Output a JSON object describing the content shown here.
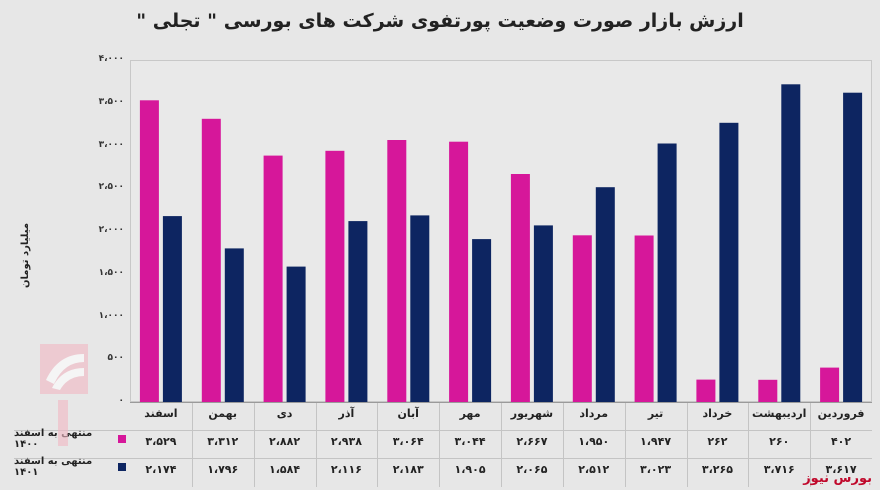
{
  "chart_data": {
    "type": "bar",
    "title": "ارزش بازار صورت وضعیت پورتفوی شرکت های بورسی \" تجلی \"",
    "ylabel": "میلیارد تومان",
    "ylim": [
      0,
      4000
    ],
    "yticks": [
      "۰",
      "۵۰۰",
      "۱،۰۰۰",
      "۱،۵۰۰",
      "۲،۰۰۰",
      "۲،۵۰۰",
      "۳،۰۰۰",
      "۳،۵۰۰",
      "۴،۰۰۰"
    ],
    "ytick_values": [
      0,
      500,
      1000,
      1500,
      2000,
      2500,
      3000,
      3500,
      4000
    ],
    "categories": [
      "فروردین",
      "اردیبهشت",
      "خرداد",
      "تیر",
      "مرداد",
      "شهریور",
      "مهر",
      "آبان",
      "آذر",
      "دی",
      "بهمن",
      "اسفند"
    ],
    "series": [
      {
        "name": "منتهی به اسفند ۱۴۰۰",
        "color": "#d6179a",
        "values": [
          402,
          260,
          262,
          1947,
          1950,
          2667,
          3044,
          3064,
          2938,
          2882,
          3312,
          3529
        ],
        "labels": [
          "۴۰۲",
          "۲۶۰",
          "۲۶۲",
          "۱،۹۴۷",
          "۱،۹۵۰",
          "۲،۶۶۷",
          "۳،۰۴۴",
          "۳،۰۶۴",
          "۲،۹۳۸",
          "۲،۸۸۲",
          "۳،۳۱۲",
          "۳،۵۲۹"
        ]
      },
      {
        "name": "منتهی به اسفند ۱۴۰۱",
        "color": "#0d2561",
        "values": [
          3617,
          3716,
          3265,
          3023,
          2512,
          2065,
          1905,
          2183,
          2116,
          1584,
          1796,
          2174
        ],
        "labels": [
          "۳،۶۱۷",
          "۳،۷۱۶",
          "۳،۲۶۵",
          "۳،۰۲۳",
          "۲،۵۱۲",
          "۲،۰۶۵",
          "۱،۹۰۵",
          "۲،۱۸۳",
          "۲،۱۱۶",
          "۱،۵۸۴",
          "۱،۷۹۶",
          "۲،۱۷۴"
        ]
      }
    ],
    "grid": false,
    "legend": "table-left"
  },
  "brand": "بورس نیوز",
  "watermark_text": "بورس نیوز"
}
